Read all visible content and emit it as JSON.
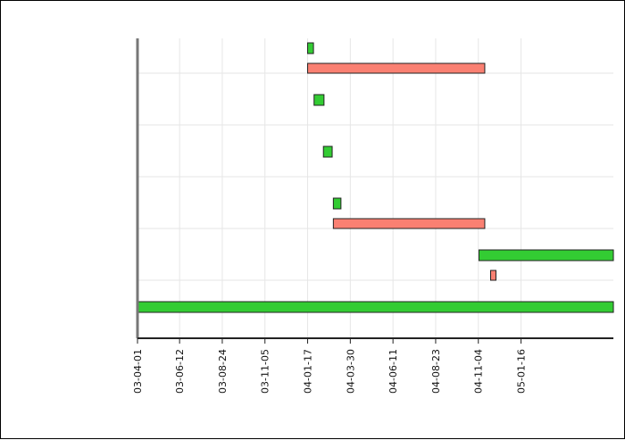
{
  "chart_data": {
    "type": "gantt",
    "title": "",
    "xlabel": "",
    "ylabel": "",
    "x_range": [
      "2003-04-01",
      "2005-06-23"
    ],
    "ticks": [
      {
        "date": "2003-04-01",
        "label": "03-04-01"
      },
      {
        "date": "2003-06-12",
        "label": "03-06-12"
      },
      {
        "date": "2003-08-24",
        "label": "03-08-24"
      },
      {
        "date": "2003-11-05",
        "label": "03-11-05"
      },
      {
        "date": "2004-01-17",
        "label": "04-01-17"
      },
      {
        "date": "2004-03-30",
        "label": "04-03-30"
      },
      {
        "date": "2004-06-11",
        "label": "04-06-11"
      },
      {
        "date": "2004-08-23",
        "label": "04-08-23"
      },
      {
        "date": "2004-11-04",
        "label": "04-11-04"
      },
      {
        "date": "2005-01-16",
        "label": "05-01-16"
      }
    ],
    "grid": true,
    "rows": 6,
    "colors": {
      "green": "#33cc33",
      "red": "#fa8072",
      "border": "#222222"
    },
    "tasks": [
      {
        "row": 0,
        "lane": 0,
        "start": "2004-01-17",
        "end": "2004-01-27",
        "color": "green"
      },
      {
        "row": 0,
        "lane": 1,
        "start": "2004-01-17",
        "end": "2004-11-15",
        "color": "red"
      },
      {
        "row": 1,
        "lane": 0,
        "start": "2004-01-28",
        "end": "2004-02-14",
        "color": "green"
      },
      {
        "row": 2,
        "lane": 0,
        "start": "2004-02-13",
        "end": "2004-02-28",
        "color": "green"
      },
      {
        "row": 3,
        "lane": 0,
        "start": "2004-03-01",
        "end": "2004-03-14",
        "color": "green"
      },
      {
        "row": 3,
        "lane": 1,
        "start": "2004-03-01",
        "end": "2004-11-15",
        "color": "red"
      },
      {
        "row": 4,
        "lane": 0,
        "start": "2004-11-05",
        "end": "2005-06-23",
        "color": "green"
      },
      {
        "row": 4,
        "lane": 1,
        "start": "2004-11-25",
        "end": "2004-12-04",
        "color": "red"
      },
      {
        "row": 5,
        "lane": 0,
        "start": "2003-04-01",
        "end": "2005-06-23",
        "color": "green"
      }
    ]
  }
}
